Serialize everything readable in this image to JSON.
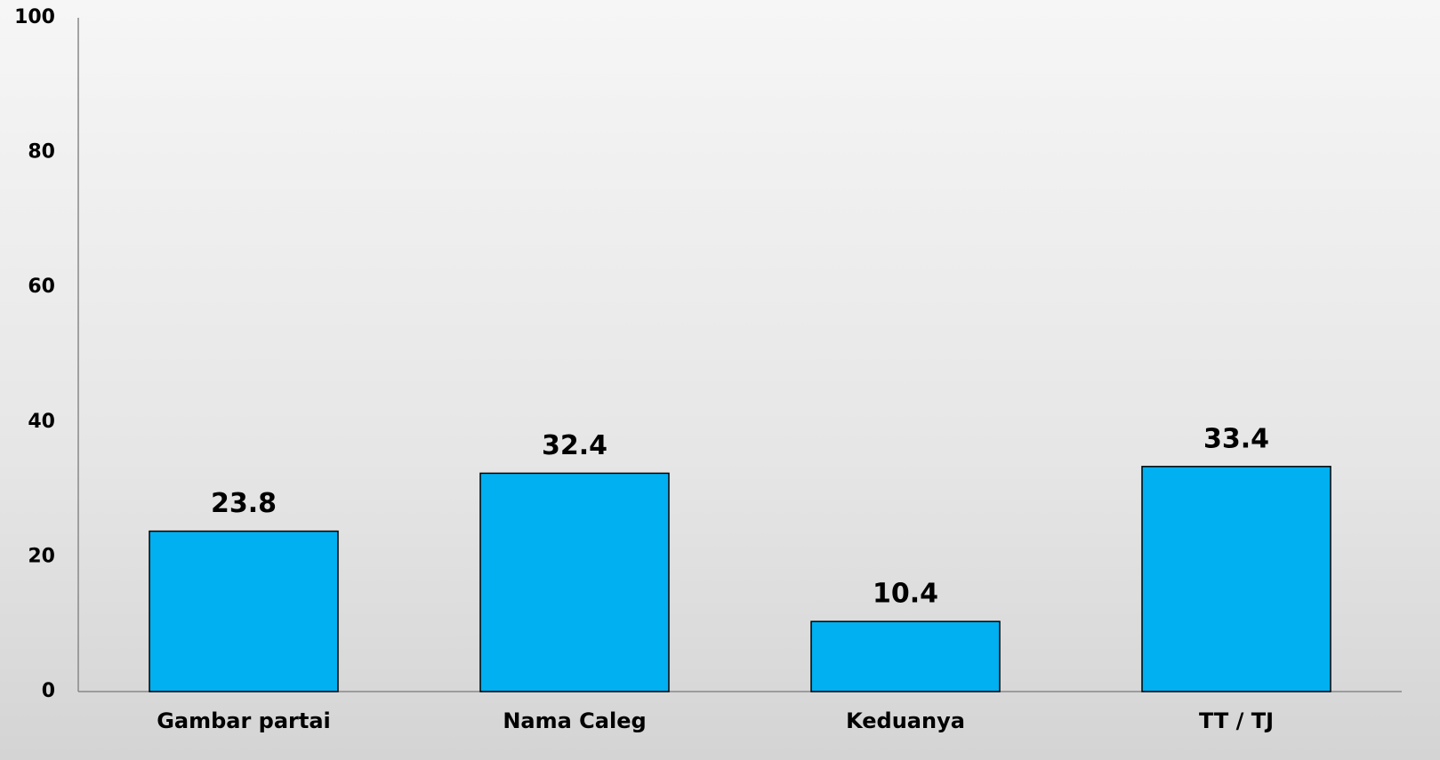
{
  "chart_data": {
    "type": "bar",
    "categories": [
      "Gambar partai",
      "Nama Caleg",
      "Keduanya",
      "TT / TJ"
    ],
    "values": [
      23.8,
      32.4,
      10.4,
      33.4
    ],
    "color": "#00b0f0",
    "ylim": [
      0,
      100
    ],
    "yticks": [
      0,
      20,
      40,
      60,
      80,
      100
    ],
    "grid": false
  }
}
